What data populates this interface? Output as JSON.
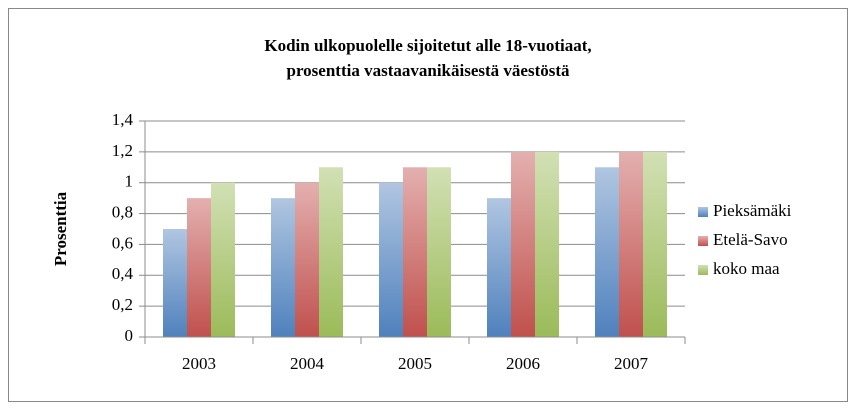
{
  "chart_data": {
    "type": "bar",
    "title": [
      "Kodin ulkopuolelle sijoitetut alle 18-vuotiaat,",
      "prosenttia vastaavanikäisestä väestöstä"
    ],
    "y_label": "Prosenttia",
    "categories": [
      "2003",
      "2004",
      "2005",
      "2006",
      "2007"
    ],
    "series": [
      {
        "name": "Pieksämäki",
        "color": "#4f81bd",
        "values": [
          0.7,
          0.9,
          1.0,
          0.9,
          1.1
        ]
      },
      {
        "name": "Etelä-Savo",
        "color": "#c0504d",
        "values": [
          0.9,
          1.0,
          1.1,
          1.2,
          1.2
        ]
      },
      {
        "name": "koko maa",
        "color": "#9bbb59",
        "values": [
          1.0,
          1.1,
          1.1,
          1.2,
          1.2
        ]
      }
    ],
    "ylim": [
      0,
      1.4
    ],
    "yticks": [
      0,
      {
        "value": 0.2,
        "label": "0,2"
      },
      {
        "value": 0.4,
        "label": "0,4"
      },
      {
        "value": 0.6,
        "label": "0,6"
      },
      {
        "value": 0.8,
        "label": "0,8"
      },
      1,
      {
        "value": 1.2,
        "label": "1,2"
      },
      {
        "value": 1.4,
        "label": "1,4"
      }
    ],
    "grid": true,
    "legend": "right"
  }
}
